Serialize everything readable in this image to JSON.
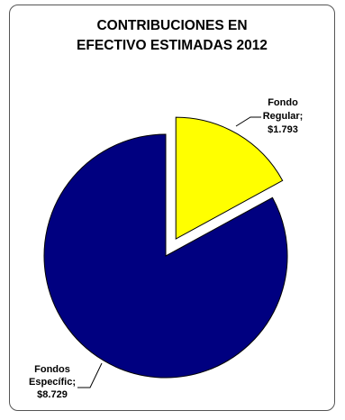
{
  "chart_data": {
    "type": "pie",
    "title_lines": [
      "CONTRIBUCIONES EN",
      "EFECTIVO ESTIMADAS 2012"
    ],
    "slices": [
      {
        "label_lines": [
          "Fondo",
          "Regular;",
          "$1.793"
        ],
        "value": 1793,
        "color": "#FFFF00",
        "exploded": true
      },
      {
        "label_lines": [
          "Fondos",
          "Específic;",
          "$8.729"
        ],
        "value": 8729,
        "color": "#000080",
        "exploded": false
      }
    ]
  }
}
